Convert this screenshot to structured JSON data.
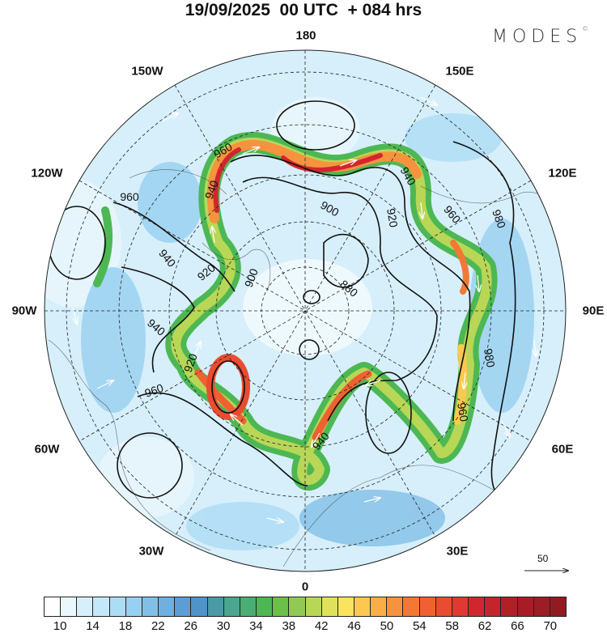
{
  "title": "19/09/2025  00 UTC  + 084 hrs",
  "logo": {
    "text": "MODES",
    "mark": "©"
  },
  "longitude_labels": {
    "top": "180",
    "bottom": "0",
    "left": "90W",
    "right": "90E",
    "nw150": "150W",
    "ne150": "150E",
    "nw120": "120W",
    "ne120": "120E",
    "sw60": "60W",
    "se60": "60E",
    "sw30": "30W",
    "se30": "30E"
  },
  "contour_labels": [
    "960",
    "940",
    "960",
    "940",
    "920",
    "900",
    "900",
    "920",
    "940",
    "960",
    "980",
    "880",
    "940",
    "920",
    "960",
    "940",
    "980",
    "960"
  ],
  "vector_reference": {
    "value": "50"
  },
  "colorbar": {
    "ticks": [
      "10",
      "14",
      "18",
      "22",
      "26",
      "30",
      "34",
      "38",
      "42",
      "46",
      "50",
      "54",
      "58",
      "62",
      "66",
      "70"
    ],
    "colors": [
      "#ffffff",
      "#eaf7fd",
      "#d6effb",
      "#c3e8f9",
      "#addcf5",
      "#97d0f0",
      "#82bfe6",
      "#70b0de",
      "#5c9dd6",
      "#4f93c8",
      "#4a9aa6",
      "#4aa68e",
      "#4aad73",
      "#4db853",
      "#6cbf48",
      "#90c953",
      "#b8d757",
      "#dfe15c",
      "#fbe360",
      "#fdc850",
      "#fbae48",
      "#f6933f",
      "#f37836",
      "#f06131",
      "#e94c30",
      "#e0392f",
      "#d2262e",
      "#c4252b",
      "#b12027",
      "#a81d25",
      "#9e1c23",
      "#921b21"
    ]
  },
  "colors": {
    "jet_core": "#d2262e",
    "jet_mid": "#fbe360",
    "jet_outer": "#4db853",
    "background_fill": "#c3e8f9"
  }
}
